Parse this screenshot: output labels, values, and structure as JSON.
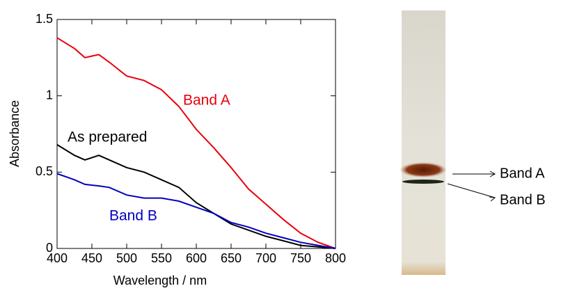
{
  "chart_data": {
    "type": "line",
    "x_label": "Wavelength / nm",
    "y_label": "Absorbance",
    "x": [
      400,
      425,
      440,
      460,
      475,
      500,
      525,
      550,
      575,
      600,
      625,
      650,
      675,
      700,
      725,
      750,
      775,
      800
    ],
    "series": [
      {
        "name": "Band A",
        "color": "#e8000b",
        "values": [
          1.38,
          1.31,
          1.25,
          1.27,
          1.22,
          1.13,
          1.1,
          1.04,
          0.93,
          0.78,
          0.66,
          0.53,
          0.39,
          0.29,
          0.19,
          0.1,
          0.04,
          0.0
        ]
      },
      {
        "name": "As prepared",
        "color": "#000000",
        "values": [
          0.68,
          0.61,
          0.58,
          0.61,
          0.58,
          0.53,
          0.5,
          0.45,
          0.4,
          0.3,
          0.23,
          0.16,
          0.12,
          0.08,
          0.05,
          0.02,
          0.01,
          0.0
        ]
      },
      {
        "name": "Band B",
        "color": "#0000c0",
        "values": [
          0.49,
          0.45,
          0.42,
          0.41,
          0.4,
          0.35,
          0.33,
          0.33,
          0.31,
          0.27,
          0.23,
          0.17,
          0.14,
          0.1,
          0.07,
          0.04,
          0.02,
          0.0
        ]
      }
    ],
    "xlim": [
      400,
      800
    ],
    "xticks": [
      400,
      450,
      500,
      550,
      600,
      650,
      700,
      750,
      800
    ],
    "ylim": [
      0,
      1.5
    ],
    "yticks": [
      0,
      0.5,
      1,
      1.5
    ]
  },
  "gel": {
    "labels": [
      "Band A",
      "Band B"
    ]
  }
}
